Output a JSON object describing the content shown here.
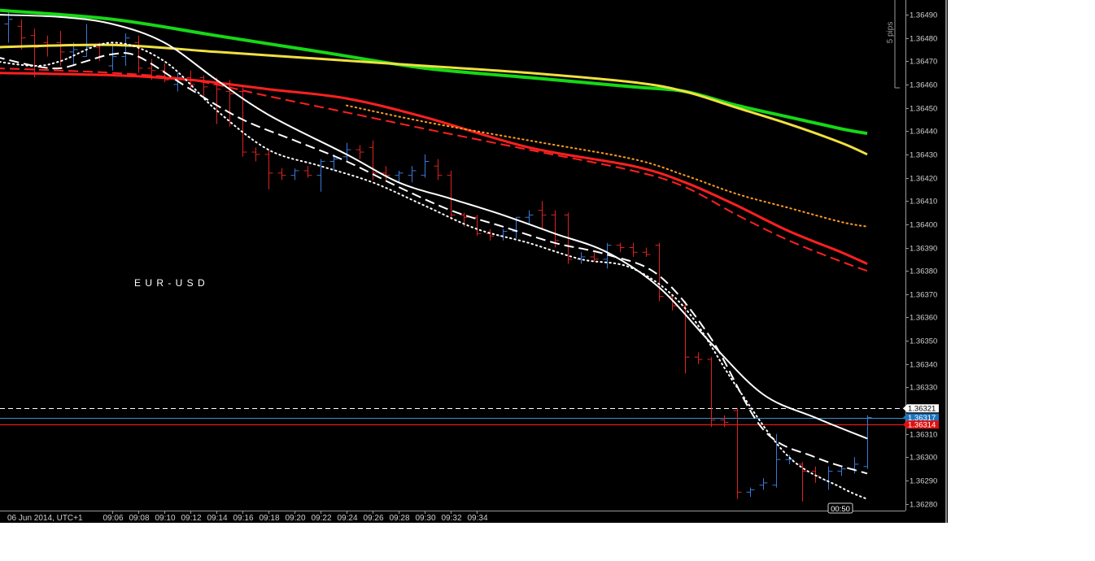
{
  "chart_data": {
    "type": "line",
    "instrument_label": "E U R - U S D",
    "time_axis": {
      "start_label": "06 Jun 2014, UTC+1",
      "ticks": [
        "09:06",
        "09:08",
        "09:10",
        "09:12",
        "09:14",
        "09:16",
        "09:18",
        "09:20",
        "09:22",
        "09:24",
        "09:26",
        "09:28",
        "09:30",
        "09:32",
        "09:34"
      ]
    },
    "price_axis": {
      "range": [
        1.36275,
        1.36495
      ],
      "ticks": [
        "1.36490",
        "1.36480",
        "1.36470",
        "1.36460",
        "1.36450",
        "1.36440",
        "1.36430",
        "1.36420",
        "1.36410",
        "1.36400",
        "1.36390",
        "1.36380",
        "1.36370",
        "1.36360",
        "1.36350",
        "1.36340",
        "1.36330",
        "1.36310",
        "1.36300",
        "1.36290",
        "1.36280"
      ]
    },
    "pip_scale_label": "5 pips",
    "countdown_label": "00:50",
    "price_markers": [
      {
        "label": "1.36321",
        "value": 1.36321,
        "style": "dashed",
        "line_color": "#ffffff",
        "box_bg": "#ffffff",
        "box_fg": "#000000"
      },
      {
        "label": "1.36317",
        "value": 1.36317,
        "style": "solid",
        "line_color": "#3a8fd6",
        "box_bg": "#1e73be",
        "box_fg": "#ffffff"
      },
      {
        "label": "1.36314",
        "value": 1.36314,
        "style": "solid",
        "line_color": "#ff2020",
        "box_bg": "#e01010",
        "box_fg": "#ffffff"
      }
    ],
    "colors": {
      "bull": "#3a78d8",
      "bear": "#e02020"
    },
    "bars": [
      {
        "t": 0,
        "o": 1.36486,
        "h": 1.36492,
        "l": 1.36478,
        "c": 1.36488
      },
      {
        "t": 1,
        "o": 1.36485,
        "h": 1.36488,
        "l": 1.36475,
        "c": 1.3648
      },
      {
        "t": 2,
        "o": 1.36481,
        "h": 1.36484,
        "l": 1.36463,
        "c": 1.36476
      },
      {
        "t": 3,
        "o": 1.36478,
        "h": 1.36481,
        "l": 1.36472,
        "c": 1.36477
      },
      {
        "t": 4,
        "o": 1.36478,
        "h": 1.36483,
        "l": 1.36468,
        "c": 1.36474
      },
      {
        "t": 5,
        "o": 1.36474,
        "h": 1.36478,
        "l": 1.36468,
        "c": 1.36475
      },
      {
        "t": 6,
        "o": 1.36472,
        "h": 1.36486,
        "l": 1.36472,
        "c": 1.36476
      },
      {
        "t": 7,
        "o": 1.36476,
        "h": 1.36478,
        "l": 1.3647,
        "c": 1.36472
      },
      {
        "t": 8,
        "o": 1.36468,
        "h": 1.36478,
        "l": 1.36466,
        "c": 1.36472
      },
      {
        "t": 9,
        "o": 1.36472,
        "h": 1.36482,
        "l": 1.36468,
        "c": 1.3648
      },
      {
        "t": 10,
        "o": 1.36478,
        "h": 1.36481,
        "l": 1.36465,
        "c": 1.36467
      },
      {
        "t": 11,
        "o": 1.36467,
        "h": 1.36471,
        "l": 1.36462,
        "c": 1.36466
      },
      {
        "t": 12,
        "o": 1.36466,
        "h": 1.36469,
        "l": 1.36461,
        "c": 1.36462
      },
      {
        "t": 13,
        "o": 1.3646,
        "h": 1.36465,
        "l": 1.36457,
        "c": 1.36463
      },
      {
        "t": 14,
        "o": 1.36463,
        "h": 1.36466,
        "l": 1.36458,
        "c": 1.3646
      },
      {
        "t": 15,
        "o": 1.36463,
        "h": 1.36464,
        "l": 1.36455,
        "c": 1.36459
      },
      {
        "t": 16,
        "o": 1.3646,
        "h": 1.36463,
        "l": 1.36443,
        "c": 1.36458
      },
      {
        "t": 17,
        "o": 1.36457,
        "h": 1.36462,
        "l": 1.36442,
        "c": 1.36456
      },
      {
        "t": 18,
        "o": 1.36457,
        "h": 1.36459,
        "l": 1.36429,
        "c": 1.36431
      },
      {
        "t": 19,
        "o": 1.36431,
        "h": 1.36433,
        "l": 1.36427,
        "c": 1.3643
      },
      {
        "t": 20,
        "o": 1.3643,
        "h": 1.36432,
        "l": 1.36415,
        "c": 1.36422
      },
      {
        "t": 21,
        "o": 1.36422,
        "h": 1.36424,
        "l": 1.36419,
        "c": 1.36421
      },
      {
        "t": 22,
        "o": 1.36421,
        "h": 1.36424,
        "l": 1.36419,
        "c": 1.36423
      },
      {
        "t": 23,
        "o": 1.36423,
        "h": 1.36425,
        "l": 1.3642,
        "c": 1.36421
      },
      {
        "t": 24,
        "o": 1.36421,
        "h": 1.36428,
        "l": 1.36414,
        "c": 1.36427
      },
      {
        "t": 25,
        "o": 1.36427,
        "h": 1.3643,
        "l": 1.36423,
        "c": 1.36428
      },
      {
        "t": 26,
        "o": 1.36429,
        "h": 1.36435,
        "l": 1.36427,
        "c": 1.36432
      },
      {
        "t": 27,
        "o": 1.36432,
        "h": 1.36434,
        "l": 1.36428,
        "c": 1.36431
      },
      {
        "t": 28,
        "o": 1.36433,
        "h": 1.36436,
        "l": 1.36419,
        "c": 1.36422
      },
      {
        "t": 29,
        "o": 1.36422,
        "h": 1.36425,
        "l": 1.36419,
        "c": 1.36421
      },
      {
        "t": 30,
        "o": 1.36421,
        "h": 1.36423,
        "l": 1.36418,
        "c": 1.36422
      },
      {
        "t": 31,
        "o": 1.36421,
        "h": 1.36425,
        "l": 1.36418,
        "c": 1.36423
      },
      {
        "t": 32,
        "o": 1.36421,
        "h": 1.3643,
        "l": 1.3642,
        "c": 1.36427
      },
      {
        "t": 33,
        "o": 1.36425,
        "h": 1.36428,
        "l": 1.36419,
        "c": 1.36421
      },
      {
        "t": 34,
        "o": 1.36421,
        "h": 1.36423,
        "l": 1.36402,
        "c": 1.36404
      },
      {
        "t": 35,
        "o": 1.36404,
        "h": 1.36405,
        "l": 1.36399,
        "c": 1.36403
      },
      {
        "t": 36,
        "o": 1.36403,
        "h": 1.36404,
        "l": 1.36395,
        "c": 1.36396
      },
      {
        "t": 37,
        "o": 1.36396,
        "h": 1.36398,
        "l": 1.36393,
        "c": 1.36395
      },
      {
        "t": 38,
        "o": 1.36395,
        "h": 1.36398,
        "l": 1.36393,
        "c": 1.36397
      },
      {
        "t": 39,
        "o": 1.36397,
        "h": 1.36403,
        "l": 1.36394,
        "c": 1.36403
      },
      {
        "t": 40,
        "o": 1.36403,
        "h": 1.36406,
        "l": 1.364,
        "c": 1.36404
      },
      {
        "t": 41,
        "o": 1.36406,
        "h": 1.3641,
        "l": 1.36398,
        "c": 1.36404
      },
      {
        "t": 42,
        "o": 1.36404,
        "h": 1.36406,
        "l": 1.3639,
        "c": 1.36393
      },
      {
        "t": 43,
        "o": 1.36404,
        "h": 1.36405,
        "l": 1.36383,
        "c": 1.36385
      },
      {
        "t": 44,
        "o": 1.36385,
        "h": 1.36388,
        "l": 1.36383,
        "c": 1.36386
      },
      {
        "t": 45,
        "o": 1.36386,
        "h": 1.36388,
        "l": 1.36384,
        "c": 1.36385
      },
      {
        "t": 46,
        "o": 1.36385,
        "h": 1.36392,
        "l": 1.36381,
        "c": 1.36391
      },
      {
        "t": 47,
        "o": 1.36391,
        "h": 1.36392,
        "l": 1.36388,
        "c": 1.3639
      },
      {
        "t": 48,
        "o": 1.3639,
        "h": 1.36392,
        "l": 1.36386,
        "c": 1.36388
      },
      {
        "t": 49,
        "o": 1.36388,
        "h": 1.3639,
        "l": 1.36386,
        "c": 1.36387
      },
      {
        "t": 50,
        "o": 1.36391,
        "h": 1.36392,
        "l": 1.36367,
        "c": 1.36369
      },
      {
        "t": 51,
        "o": 1.36369,
        "h": 1.3637,
        "l": 1.36363,
        "c": 1.36365
      },
      {
        "t": 52,
        "o": 1.36365,
        "h": 1.36367,
        "l": 1.36336,
        "c": 1.36343
      },
      {
        "t": 53,
        "o": 1.36343,
        "h": 1.36345,
        "l": 1.3634,
        "c": 1.36342
      },
      {
        "t": 54,
        "o": 1.36342,
        "h": 1.36343,
        "l": 1.36313,
        "c": 1.36316
      },
      {
        "t": 55,
        "o": 1.36316,
        "h": 1.36318,
        "l": 1.36313,
        "c": 1.36315
      },
      {
        "t": 56,
        "o": 1.3632,
        "h": 1.36321,
        "l": 1.36282,
        "c": 1.36285
      },
      {
        "t": 57,
        "o": 1.36285,
        "h": 1.36287,
        "l": 1.36283,
        "c": 1.36286
      },
      {
        "t": 58,
        "o": 1.36288,
        "h": 1.36291,
        "l": 1.36286,
        "c": 1.36289
      },
      {
        "t": 59,
        "o": 1.36288,
        "h": 1.3631,
        "l": 1.36287,
        "c": 1.36299
      },
      {
        "t": 60,
        "o": 1.36299,
        "h": 1.36301,
        "l": 1.36297,
        "c": 1.36299
      },
      {
        "t": 61,
        "o": 1.36297,
        "h": 1.36298,
        "l": 1.36281,
        "c": 1.36294
      },
      {
        "t": 62,
        "o": 1.36294,
        "h": 1.36296,
        "l": 1.36289,
        "c": 1.36292
      },
      {
        "t": 63,
        "o": 1.3629,
        "h": 1.36296,
        "l": 1.36286,
        "c": 1.36294
      },
      {
        "t": 64,
        "o": 1.36294,
        "h": 1.36296,
        "l": 1.36292,
        "c": 1.36295
      },
      {
        "t": 65,
        "o": 1.36295,
        "h": 1.363,
        "l": 1.36293,
        "c": 1.36297
      },
      {
        "t": 66,
        "o": 1.36296,
        "h": 1.36318,
        "l": 1.36295,
        "c": 1.36317
      }
    ],
    "series": [
      {
        "style": "solid",
        "color": "#16d816",
        "width": 4,
        "points": [
          [
            -1,
            1.36492
          ],
          [
            8,
            1.36488
          ],
          [
            16,
            1.36481
          ],
          [
            24,
            1.36474
          ],
          [
            32,
            1.36467
          ],
          [
            40,
            1.36463
          ],
          [
            48,
            1.36459
          ],
          [
            52,
            1.36457
          ],
          [
            56,
            1.36451
          ],
          [
            60,
            1.36446
          ],
          [
            64,
            1.36441
          ],
          [
            66,
            1.36439
          ]
        ]
      },
      {
        "style": "solid",
        "color": "#f0e040",
        "width": 3,
        "points": [
          [
            -1,
            1.36476
          ],
          [
            8,
            1.36477
          ],
          [
            16,
            1.36474
          ],
          [
            24,
            1.36471
          ],
          [
            32,
            1.36468
          ],
          [
            40,
            1.36465
          ],
          [
            48,
            1.36461
          ],
          [
            52,
            1.36457
          ],
          [
            56,
            1.3645
          ],
          [
            60,
            1.36443
          ],
          [
            64,
            1.36435
          ],
          [
            66,
            1.3643
          ]
        ]
      },
      {
        "style": "solid",
        "color": "#ff2020",
        "width": 3,
        "points": [
          [
            -1,
            1.36465
          ],
          [
            8,
            1.36464
          ],
          [
            14,
            1.36462
          ],
          [
            20,
            1.36458
          ],
          [
            26,
            1.36454
          ],
          [
            32,
            1.36446
          ],
          [
            40,
            1.36433
          ],
          [
            48,
            1.36425
          ],
          [
            52,
            1.36418
          ],
          [
            56,
            1.36408
          ],
          [
            60,
            1.36397
          ],
          [
            64,
            1.36388
          ],
          [
            66,
            1.36383
          ]
        ]
      },
      {
        "style": "dashed",
        "color": "#ff2020",
        "width": 2,
        "points": [
          [
            -1,
            1.36467
          ],
          [
            8,
            1.36465
          ],
          [
            14,
            1.36462
          ],
          [
            20,
            1.36455
          ],
          [
            26,
            1.36448
          ],
          [
            32,
            1.36441
          ],
          [
            40,
            1.36432
          ],
          [
            48,
            1.36423
          ],
          [
            52,
            1.36416
          ],
          [
            56,
            1.36404
          ],
          [
            60,
            1.36393
          ],
          [
            64,
            1.36384
          ],
          [
            66,
            1.3638
          ]
        ]
      },
      {
        "style": "dotted",
        "color": "#ff9a20",
        "width": 2,
        "points": [
          [
            26,
            1.36451
          ],
          [
            32,
            1.36444
          ],
          [
            40,
            1.36436
          ],
          [
            48,
            1.36428
          ],
          [
            52,
            1.36421
          ],
          [
            56,
            1.36413
          ],
          [
            60,
            1.36407
          ],
          [
            64,
            1.36401
          ],
          [
            66,
            1.36399
          ]
        ]
      },
      {
        "style": "solid",
        "color": "#ffffff",
        "width": 2,
        "points": [
          [
            -1,
            1.3649
          ],
          [
            4,
            1.36489
          ],
          [
            8,
            1.36486
          ],
          [
            12,
            1.36478
          ],
          [
            16,
            1.36462
          ],
          [
            20,
            1.36447
          ],
          [
            26,
            1.3643
          ],
          [
            30,
            1.36418
          ],
          [
            34,
            1.36411
          ],
          [
            38,
            1.36404
          ],
          [
            42,
            1.36396
          ],
          [
            46,
            1.36388
          ],
          [
            50,
            1.36373
          ],
          [
            54,
            1.36349
          ],
          [
            58,
            1.36327
          ],
          [
            62,
            1.36317
          ],
          [
            66,
            1.36308
          ]
        ]
      },
      {
        "style": "dashed",
        "color": "#ffffff",
        "width": 2,
        "points": [
          [
            -1,
            1.36472
          ],
          [
            2,
            1.36468
          ],
          [
            4,
            1.36467
          ],
          [
            6,
            1.3647
          ],
          [
            8,
            1.36473
          ],
          [
            10,
            1.36472
          ],
          [
            14,
            1.36458
          ],
          [
            18,
            1.36445
          ],
          [
            22,
            1.36436
          ],
          [
            26,
            1.36427
          ],
          [
            30,
            1.36416
          ],
          [
            34,
            1.36406
          ],
          [
            38,
            1.36399
          ],
          [
            42,
            1.36392
          ],
          [
            46,
            1.36387
          ],
          [
            50,
            1.36378
          ],
          [
            54,
            1.36351
          ],
          [
            58,
            1.36312
          ],
          [
            62,
            1.363
          ],
          [
            66,
            1.36293
          ]
        ]
      },
      {
        "style": "dotted",
        "color": "#ffffff",
        "width": 2,
        "points": [
          [
            -1,
            1.3647
          ],
          [
            2,
            1.36468
          ],
          [
            4,
            1.3647
          ],
          [
            8,
            1.36478
          ],
          [
            12,
            1.3647
          ],
          [
            16,
            1.36449
          ],
          [
            20,
            1.36432
          ],
          [
            24,
            1.36425
          ],
          [
            28,
            1.36418
          ],
          [
            32,
            1.36408
          ],
          [
            36,
            1.36398
          ],
          [
            40,
            1.36392
          ],
          [
            44,
            1.36385
          ],
          [
            48,
            1.36381
          ],
          [
            52,
            1.36364
          ],
          [
            56,
            1.3633
          ],
          [
            60,
            1.363
          ],
          [
            64,
            1.36287
          ],
          [
            66,
            1.36282
          ]
        ]
      }
    ]
  }
}
